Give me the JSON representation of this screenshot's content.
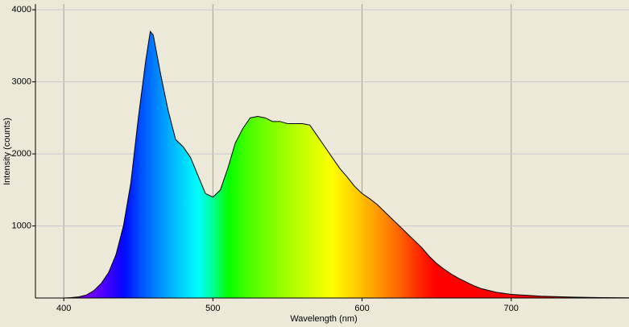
{
  "chart_data": {
    "type": "area",
    "x_label": "Wavelength (nm)",
    "y_label": "Intensity (counts)",
    "x": [
      381,
      400,
      405,
      410,
      415,
      420,
      425,
      430,
      435,
      440,
      445,
      450,
      455,
      458,
      460,
      465,
      470,
      475,
      480,
      485,
      490,
      495,
      500,
      505,
      510,
      515,
      520,
      525,
      530,
      535,
      540,
      545,
      550,
      555,
      560,
      565,
      570,
      575,
      580,
      585,
      590,
      595,
      600,
      605,
      610,
      615,
      620,
      625,
      630,
      635,
      640,
      645,
      650,
      655,
      660,
      665,
      670,
      675,
      680,
      690,
      700,
      720,
      740,
      760,
      779
    ],
    "series": [
      {
        "color": "#000000",
        "values": [
          0,
          0,
          5,
          15,
          40,
          100,
          200,
          350,
          600,
          1000,
          1600,
          2500,
          3300,
          3700,
          3650,
          3100,
          2600,
          2200,
          2100,
          1950,
          1700,
          1450,
          1400,
          1500,
          1800,
          2150,
          2350,
          2500,
          2520,
          2500,
          2450,
          2450,
          2420,
          2420,
          2420,
          2400,
          2250,
          2100,
          1950,
          1800,
          1680,
          1550,
          1450,
          1380,
          1300,
          1200,
          1100,
          1000,
          900,
          800,
          700,
          580,
          480,
          400,
          330,
          270,
          220,
          170,
          130,
          80,
          50,
          25,
          12,
          6,
          3
        ]
      }
    ],
    "xlim": [
      381,
      779
    ],
    "ylim": [
      0,
      4080
    ],
    "xticks": [
      400,
      500,
      600,
      700
    ],
    "yticks": [
      1000,
      2000,
      3000,
      4000
    ],
    "grid": true,
    "fill": "spectrum"
  }
}
